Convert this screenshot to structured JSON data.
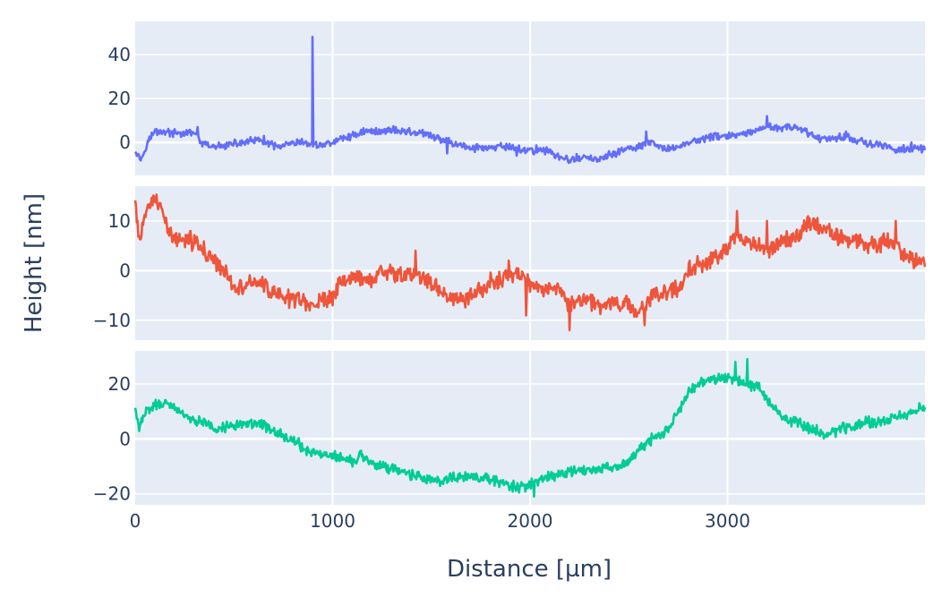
{
  "colors": {
    "plot_bg": "#E5ECF6",
    "grid": "#FFFFFF",
    "text": "#2A3F5F"
  },
  "chart_data": {
    "type": "line",
    "title": "",
    "xlabel": "Distance [µm]",
    "ylabel": "Height [nm]",
    "shared_x": true,
    "xlim": [
      0,
      4000
    ],
    "x_ticks": [
      0,
      1000,
      2000,
      3000
    ],
    "x_tick_labels": [
      "0",
      "1000",
      "2000",
      "3000"
    ],
    "grid": true,
    "legend": "none",
    "panels": [
      {
        "color": "#636EFA",
        "ylim": [
          -15,
          55
        ],
        "y_ticks": [
          0,
          20,
          40
        ],
        "y_tick_labels": [
          "0",
          "20",
          "40"
        ],
        "noise": 1.3,
        "points": [
          [
            0,
            -3
          ],
          [
            30,
            -8
          ],
          [
            60,
            0
          ],
          [
            100,
            5
          ],
          [
            150,
            5
          ],
          [
            200,
            4
          ],
          [
            260,
            4
          ],
          [
            300,
            5
          ],
          [
            330,
            0
          ],
          [
            380,
            -2
          ],
          [
            420,
            -2
          ],
          [
            480,
            -1
          ],
          [
            550,
            0
          ],
          [
            620,
            1
          ],
          [
            680,
            -1
          ],
          [
            720,
            -2
          ],
          [
            780,
            -1
          ],
          [
            850,
            0
          ],
          [
            897,
            -1
          ],
          [
            898,
            48
          ],
          [
            900,
            -1
          ],
          [
            950,
            -1
          ],
          [
            1000,
            0
          ],
          [
            1050,
            2
          ],
          [
            1100,
            3
          ],
          [
            1150,
            5
          ],
          [
            1200,
            5
          ],
          [
            1250,
            5
          ],
          [
            1300,
            6
          ],
          [
            1350,
            5
          ],
          [
            1400,
            5
          ],
          [
            1450,
            4
          ],
          [
            1500,
            3
          ],
          [
            1550,
            1
          ],
          [
            1600,
            0
          ],
          [
            1650,
            -1
          ],
          [
            1700,
            -3
          ],
          [
            1750,
            -2
          ],
          [
            1800,
            -3
          ],
          [
            1850,
            -2
          ],
          [
            1900,
            -2
          ],
          [
            1950,
            -3
          ],
          [
            2000,
            -4
          ],
          [
            2050,
            -3
          ],
          [
            2100,
            -4
          ],
          [
            2150,
            -7
          ],
          [
            2200,
            -8
          ],
          [
            2250,
            -7
          ],
          [
            2300,
            -7
          ],
          [
            2350,
            -8
          ],
          [
            2400,
            -6
          ],
          [
            2450,
            -4
          ],
          [
            2500,
            -3
          ],
          [
            2550,
            -2
          ],
          [
            2600,
            0
          ],
          [
            2650,
            -2
          ],
          [
            2700,
            -3
          ],
          [
            2750,
            -2
          ],
          [
            2800,
            0
          ],
          [
            2850,
            1
          ],
          [
            2900,
            2
          ],
          [
            2950,
            3
          ],
          [
            3000,
            3
          ],
          [
            3050,
            3
          ],
          [
            3100,
            4
          ],
          [
            3150,
            5
          ],
          [
            3200,
            7
          ],
          [
            3250,
            7
          ],
          [
            3300,
            7
          ],
          [
            3350,
            6
          ],
          [
            3400,
            5
          ],
          [
            3450,
            2
          ],
          [
            3500,
            2
          ],
          [
            3550,
            2
          ],
          [
            3600,
            3
          ],
          [
            3650,
            1
          ],
          [
            3700,
            0
          ],
          [
            3750,
            -1
          ],
          [
            3800,
            -2
          ],
          [
            3850,
            -3
          ],
          [
            3900,
            -3
          ],
          [
            3950,
            -3
          ],
          [
            4000,
            -3
          ]
        ],
        "spikes": [
          [
            315,
            7
          ],
          [
            650,
            3
          ],
          [
            1400,
            4
          ],
          [
            1580,
            -5
          ],
          [
            1930,
            -6
          ],
          [
            2590,
            5
          ],
          [
            3200,
            12
          ],
          [
            3340,
            8
          ],
          [
            3600,
            5
          ],
          [
            3930,
            0
          ]
        ]
      },
      {
        "color": "#EF553B",
        "ylim": [
          -14,
          17
        ],
        "y_ticks": [
          -10,
          0,
          10
        ],
        "y_tick_labels": [
          "−10",
          "0",
          "10"
        ],
        "noise": 1.3,
        "points": [
          [
            0,
            13
          ],
          [
            25,
            5
          ],
          [
            50,
            12
          ],
          [
            80,
            14
          ],
          [
            120,
            13
          ],
          [
            150,
            10
          ],
          [
            180,
            7
          ],
          [
            220,
            6
          ],
          [
            260,
            6
          ],
          [
            300,
            6
          ],
          [
            350,
            4
          ],
          [
            400,
            2
          ],
          [
            450,
            0
          ],
          [
            500,
            -3
          ],
          [
            550,
            -3
          ],
          [
            600,
            -2
          ],
          [
            650,
            -3
          ],
          [
            700,
            -5
          ],
          [
            750,
            -5
          ],
          [
            800,
            -6
          ],
          [
            850,
            -6
          ],
          [
            900,
            -7
          ],
          [
            950,
            -6
          ],
          [
            1000,
            -5
          ],
          [
            1050,
            -2
          ],
          [
            1100,
            -1
          ],
          [
            1150,
            -2
          ],
          [
            1200,
            -2
          ],
          [
            1250,
            0
          ],
          [
            1300,
            0
          ],
          [
            1350,
            -1
          ],
          [
            1400,
            -1
          ],
          [
            1450,
            -1
          ],
          [
            1500,
            -3
          ],
          [
            1550,
            -4
          ],
          [
            1600,
            -6
          ],
          [
            1650,
            -6
          ],
          [
            1700,
            -5
          ],
          [
            1750,
            -4
          ],
          [
            1800,
            -2
          ],
          [
            1850,
            -2
          ],
          [
            1900,
            -1
          ],
          [
            1950,
            0
          ],
          [
            2000,
            -3
          ],
          [
            2050,
            -4
          ],
          [
            2100,
            -3
          ],
          [
            2150,
            -3
          ],
          [
            2200,
            -7
          ],
          [
            2250,
            -6
          ],
          [
            2300,
            -6
          ],
          [
            2350,
            -7
          ],
          [
            2400,
            -6
          ],
          [
            2450,
            -7
          ],
          [
            2500,
            -7
          ],
          [
            2550,
            -8
          ],
          [
            2600,
            -6
          ],
          [
            2650,
            -5
          ],
          [
            2700,
            -4
          ],
          [
            2750,
            -4
          ],
          [
            2800,
            0
          ],
          [
            2850,
            1
          ],
          [
            2900,
            2
          ],
          [
            2950,
            3
          ],
          [
            3000,
            5
          ],
          [
            3050,
            7
          ],
          [
            3100,
            6
          ],
          [
            3150,
            5
          ],
          [
            3200,
            4
          ],
          [
            3250,
            5
          ],
          [
            3300,
            6
          ],
          [
            3350,
            7
          ],
          [
            3400,
            9
          ],
          [
            3450,
            9
          ],
          [
            3500,
            8
          ],
          [
            3550,
            7
          ],
          [
            3600,
            6
          ],
          [
            3650,
            6
          ],
          [
            3700,
            5
          ],
          [
            3750,
            5
          ],
          [
            3800,
            6
          ],
          [
            3850,
            5
          ],
          [
            3900,
            3
          ],
          [
            3950,
            2
          ],
          [
            4000,
            2
          ]
        ],
        "spikes": [
          [
            1420,
            4
          ],
          [
            1890,
            2
          ],
          [
            1980,
            -9
          ],
          [
            2200,
            -12
          ],
          [
            2580,
            -11
          ],
          [
            3050,
            12
          ],
          [
            3200,
            10
          ],
          [
            3850,
            10
          ],
          [
            3820,
            5
          ]
        ]
      },
      {
        "color": "#00CC96",
        "ylim": [
          -24,
          32
        ],
        "y_ticks": [
          -20,
          0,
          20
        ],
        "y_tick_labels": [
          "−20",
          "0",
          "20"
        ],
        "noise": 1.5,
        "points": [
          [
            0,
            12
          ],
          [
            20,
            4
          ],
          [
            50,
            10
          ],
          [
            100,
            12
          ],
          [
            150,
            13
          ],
          [
            200,
            11
          ],
          [
            250,
            9
          ],
          [
            300,
            6
          ],
          [
            350,
            6
          ],
          [
            400,
            4
          ],
          [
            450,
            4
          ],
          [
            500,
            5
          ],
          [
            550,
            5
          ],
          [
            600,
            6
          ],
          [
            650,
            5
          ],
          [
            700,
            3
          ],
          [
            750,
            1
          ],
          [
            800,
            -1
          ],
          [
            850,
            -3
          ],
          [
            900,
            -5
          ],
          [
            950,
            -6
          ],
          [
            1000,
            -6
          ],
          [
            1050,
            -7
          ],
          [
            1100,
            -8
          ],
          [
            1150,
            -6
          ],
          [
            1200,
            -9
          ],
          [
            1250,
            -10
          ],
          [
            1300,
            -11
          ],
          [
            1350,
            -12
          ],
          [
            1400,
            -13
          ],
          [
            1450,
            -14
          ],
          [
            1500,
            -15
          ],
          [
            1550,
            -15
          ],
          [
            1600,
            -14
          ],
          [
            1650,
            -14
          ],
          [
            1700,
            -14
          ],
          [
            1750,
            -14
          ],
          [
            1800,
            -15
          ],
          [
            1850,
            -16
          ],
          [
            1900,
            -17
          ],
          [
            1950,
            -18
          ],
          [
            2000,
            -17
          ],
          [
            2050,
            -15
          ],
          [
            2100,
            -14
          ],
          [
            2150,
            -13
          ],
          [
            2200,
            -12
          ],
          [
            2250,
            -12
          ],
          [
            2300,
            -11
          ],
          [
            2350,
            -11
          ],
          [
            2400,
            -11
          ],
          [
            2450,
            -10
          ],
          [
            2500,
            -8
          ],
          [
            2550,
            -4
          ],
          [
            2600,
            -1
          ],
          [
            2650,
            1
          ],
          [
            2700,
            3
          ],
          [
            2750,
            10
          ],
          [
            2800,
            17
          ],
          [
            2850,
            20
          ],
          [
            2900,
            21
          ],
          [
            2950,
            22
          ],
          [
            3000,
            22
          ],
          [
            3050,
            21
          ],
          [
            3100,
            20
          ],
          [
            3150,
            19
          ],
          [
            3200,
            15
          ],
          [
            3250,
            10
          ],
          [
            3300,
            7
          ],
          [
            3350,
            6
          ],
          [
            3400,
            4
          ],
          [
            3450,
            3
          ],
          [
            3500,
            1
          ],
          [
            3550,
            3
          ],
          [
            3600,
            4
          ],
          [
            3650,
            5
          ],
          [
            3700,
            6
          ],
          [
            3750,
            6
          ],
          [
            3800,
            7
          ],
          [
            3850,
            8
          ],
          [
            3900,
            8
          ],
          [
            3950,
            11
          ],
          [
            4000,
            12
          ]
        ],
        "spikes": [
          [
            2020,
            -21
          ],
          [
            3040,
            28
          ],
          [
            3100,
            29
          ],
          [
            3450,
            5
          ],
          [
            3700,
            8
          ]
        ]
      }
    ]
  }
}
